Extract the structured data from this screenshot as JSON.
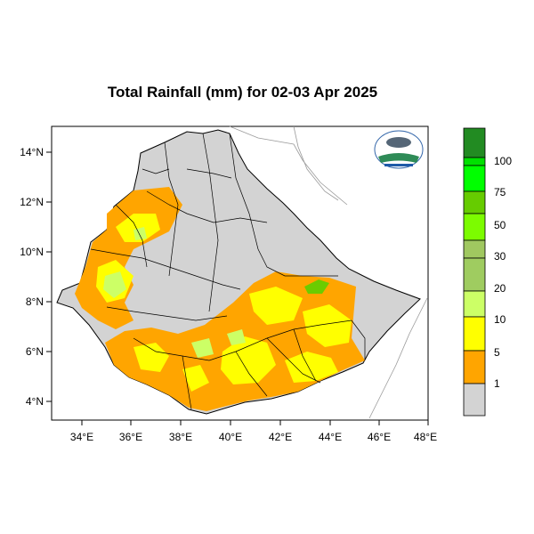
{
  "title": "Total Rainfall (mm) for 02-03 Apr 2025",
  "map": {
    "x_ticks": [
      "34°E",
      "36°E",
      "38°E",
      "40°E",
      "42°E",
      "44°E",
      "46°E",
      "48°E"
    ],
    "y_ticks": [
      "14°N",
      "12°N",
      "10°N",
      "8°N",
      "6°N",
      "4°N"
    ],
    "x_range": [
      32.8,
      48.0
    ],
    "y_range": [
      3.2,
      15.0
    ],
    "logo": "ethiopian-meteorology-institute-logo"
  },
  "legend": {
    "labels": [
      "100",
      "75",
      "50",
      "30",
      "20",
      "10",
      "5",
      "1"
    ],
    "colors": [
      "#228b22",
      "#00e000",
      "#33ff33",
      "#6bcc00",
      "#7cfc00",
      "#a0c860",
      "#ccff66",
      "#ffff00",
      "#ffa500",
      "#d3d3d3"
    ]
  }
}
